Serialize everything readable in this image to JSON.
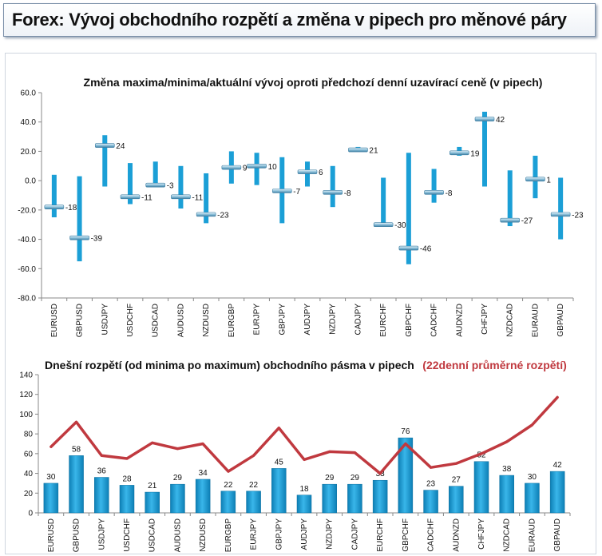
{
  "header": {
    "title": "Forex: Vývoj obchodního rozpětí a změna v pipech pro měnové páry"
  },
  "chart_data": [
    {
      "type": "range",
      "title": "Změna maxima/minima/aktuální vývoj oproti předchozí denní uzavírací ceně (v pipech)",
      "categories": [
        "EURUSD",
        "GBPUSD",
        "USDJPY",
        "USDCHF",
        "USDCAD",
        "AUDUSD",
        "NZDUSD",
        "EURGBP",
        "EURJPY",
        "GBPJPY",
        "AUDJPY",
        "NZDJPY",
        "CADJPY",
        "EURCHF",
        "GBPCHF",
        "CADCHF",
        "AUDNZD",
        "CHFJPY",
        "NZDCAD",
        "EURAUD",
        "GBPAUD"
      ],
      "high": [
        4,
        3,
        31,
        12,
        13,
        10,
        5,
        20,
        19,
        16,
        13,
        10,
        23,
        2,
        19,
        8,
        23,
        47,
        7,
        17,
        2
      ],
      "low": [
        -25,
        -55,
        -4,
        -16,
        -4,
        -19,
        -29,
        -2,
        -3,
        -29,
        -4,
        -18,
        20,
        -31,
        -57,
        -15,
        17,
        -4,
        -31,
        -12,
        -40
      ],
      "current": [
        -18,
        -39,
        24,
        -11,
        -3,
        -11,
        -23,
        9,
        10,
        -7,
        6,
        -8,
        21,
        -30,
        -46,
        -8,
        19,
        42,
        -27,
        1,
        -23
      ],
      "ylim": [
        -80,
        60
      ],
      "yticks": [
        "-80.0",
        "-60.0",
        "-40.0",
        "-20.0",
        "0.0",
        "20.0",
        "40.0",
        "60.0"
      ],
      "colors": {
        "range": "#1b9fd6",
        "marker": "#7fb4cf"
      }
    },
    {
      "type": "bar+line",
      "title": "Dnešní rozpětí (od minima po maximum) obchodního pásma v pipech",
      "title_extra": "(22denní průměrné rozpětí)",
      "categories": [
        "EURUSD",
        "GBPUSD",
        "USDJPY",
        "USDCHF",
        "USDCAD",
        "AUDUSD",
        "NZDUSD",
        "EURGBP",
        "EURJPY",
        "GBPJPY",
        "AUDJPY",
        "NZDJPY",
        "CADJPY",
        "EURCHF",
        "GBPCHF",
        "CADCHF",
        "AUDNZD",
        "CHFJPY",
        "NZDCAD",
        "EURAUD",
        "GBPAUD"
      ],
      "bars": [
        30,
        58,
        36,
        28,
        21,
        29,
        34,
        22,
        22,
        45,
        18,
        29,
        29,
        33,
        76,
        23,
        27,
        52,
        38,
        30,
        42
      ],
      "line": [
        67,
        92,
        58,
        55,
        71,
        65,
        70,
        42,
        58,
        86,
        54,
        62,
        61,
        40,
        70,
        46,
        50,
        60,
        72,
        89,
        117
      ],
      "ylim": [
        0,
        140
      ],
      "yticks": [
        "0",
        "20",
        "40",
        "60",
        "80",
        "100",
        "120",
        "140"
      ],
      "colors": {
        "bar": "#1b9fd6",
        "line": "#c0393f"
      }
    }
  ]
}
